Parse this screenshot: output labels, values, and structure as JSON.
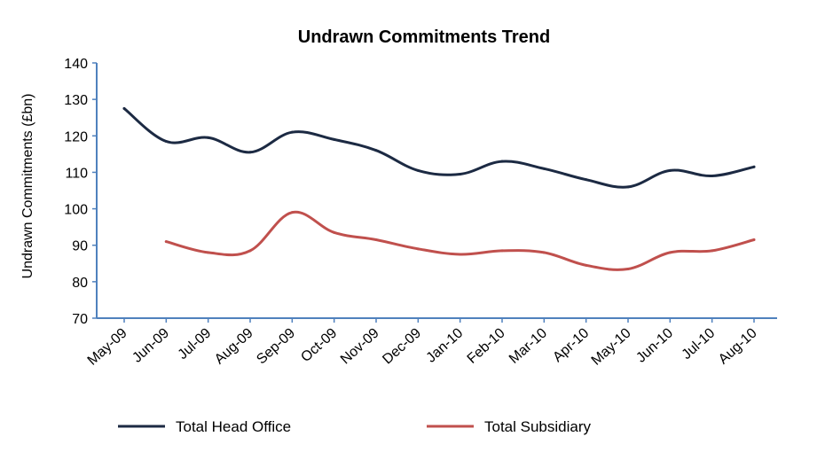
{
  "chart_data": {
    "type": "line",
    "title": "Undrawn Commitments Trend",
    "xlabel": "",
    "ylabel": "Undrawn Commitments (£bn)",
    "ylim": [
      70,
      140
    ],
    "yticks": [
      70,
      80,
      90,
      100,
      110,
      120,
      130,
      140
    ],
    "grid": false,
    "legend_position": "bottom",
    "categories": [
      "May-09",
      "Jun-09",
      "Jul-09",
      "Aug-09",
      "Sep-09",
      "Oct-09",
      "Nov-09",
      "Dec-09",
      "Jan-10",
      "Feb-10",
      "Mar-10",
      "Apr-10",
      "May-10",
      "Jun-10",
      "Jul-10",
      "Aug-10"
    ],
    "series": [
      {
        "name": "Total Head Office",
        "color": "#1c2a43",
        "values": [
          127.5,
          118.5,
          119.5,
          115.5,
          121,
          119,
          116,
          110.5,
          109.5,
          113,
          111,
          108,
          106,
          110.5,
          109,
          111.5
        ]
      },
      {
        "name": "Total Subsidiary",
        "color": "#c0504d",
        "values": [
          null,
          91,
          88,
          88.5,
          99,
          93.5,
          91.5,
          89,
          87.5,
          88.5,
          88,
          84.5,
          83.5,
          88,
          88.5,
          91.5
        ]
      }
    ],
    "colors": {
      "axis": "#4f81bd"
    }
  }
}
